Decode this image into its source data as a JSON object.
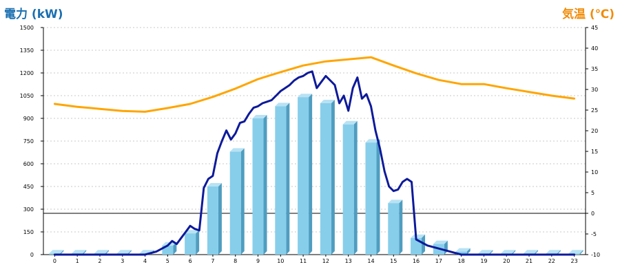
{
  "chart_data": {
    "type": "bar",
    "title": "",
    "left_axis": {
      "label": "電力 (kW)",
      "color": "#1a6fb0",
      "ylim": [
        0,
        1500
      ],
      "ticks": [
        0,
        150,
        300,
        450,
        600,
        750,
        900,
        1050,
        1200,
        1350,
        1500
      ]
    },
    "right_axis": {
      "label": "気温 (℃)",
      "color": "#f08c0a",
      "ylim": [
        -10,
        45
      ],
      "ticks": [
        -10,
        -5,
        0,
        5,
        10,
        15,
        20,
        25,
        30,
        35,
        40,
        45
      ]
    },
    "x_ticks": [
      0,
      1,
      2,
      3,
      4,
      5,
      6,
      7,
      8,
      9,
      10,
      11,
      12,
      13,
      14,
      15,
      16,
      17,
      18,
      19,
      20,
      21,
      22,
      23
    ],
    "grid": true,
    "colors": {
      "bar_front": "#87ceeb",
      "bar_side": "#4f9dc0",
      "bar_top": "#b8e2f4",
      "line_power": "#0d1a9a",
      "line_temp": "#ffa500",
      "grid": "#c8c8c8",
      "zero_line": "#000000"
    },
    "series": [
      {
        "type": "bar",
        "axis": "left",
        "x": [
          0,
          1,
          2,
          3,
          4,
          5,
          6,
          7,
          8,
          9,
          10,
          11,
          12,
          13,
          14,
          15,
          16,
          17,
          18,
          19,
          20,
          21,
          22,
          23
        ],
        "values": [
          8,
          8,
          8,
          8,
          8,
          60,
          140,
          450,
          680,
          900,
          980,
          1040,
          1000,
          860,
          740,
          340,
          110,
          70,
          20,
          8,
          8,
          8,
          8,
          8
        ]
      },
      {
        "type": "line",
        "axis": "left",
        "x": [
          0,
          4,
          4.5,
          5,
          5.2,
          5.4,
          5.6,
          5.8,
          6,
          6.2,
          6.4,
          6.6,
          6.8,
          7,
          7.2,
          7.4,
          7.6,
          7.8,
          8,
          8.2,
          8.4,
          8.6,
          8.8,
          9,
          9.2,
          9.4,
          9.6,
          9.8,
          10,
          10.2,
          10.4,
          10.6,
          10.8,
          11,
          11.2,
          11.4,
          11.6,
          11.8,
          12,
          12.2,
          12.4,
          12.6,
          12.8,
          13,
          13.2,
          13.4,
          13.6,
          13.8,
          14,
          14.2,
          14.4,
          14.6,
          14.8,
          15,
          15.2,
          15.4,
          15.6,
          15.8,
          16,
          16.5,
          17,
          17.5,
          18,
          23
        ],
        "values": [
          0,
          0,
          20,
          60,
          90,
          70,
          110,
          150,
          190,
          170,
          160,
          440,
          500,
          520,
          670,
          750,
          820,
          760,
          800,
          870,
          880,
          930,
          970,
          980,
          1000,
          1010,
          1020,
          1050,
          1080,
          1100,
          1120,
          1150,
          1170,
          1180,
          1200,
          1210,
          1100,
          1140,
          1180,
          1150,
          1120,
          1000,
          1050,
          950,
          1100,
          1170,
          1030,
          1060,
          980,
          820,
          700,
          550,
          450,
          420,
          430,
          480,
          500,
          480,
          100,
          60,
          40,
          20,
          0,
          0
        ]
      },
      {
        "type": "line",
        "axis": "right",
        "x": [
          0,
          1,
          2,
          3,
          4,
          5,
          6,
          7,
          8,
          9,
          10,
          11,
          12,
          13,
          14,
          15,
          16,
          17,
          18,
          19,
          20,
          21,
          22,
          23
        ],
        "values": [
          26.5,
          25.8,
          25.3,
          24.8,
          24.6,
          25.5,
          26.5,
          28.2,
          30.2,
          32.5,
          34.2,
          35.8,
          36.8,
          37.3,
          37.8,
          35.8,
          33.9,
          32.3,
          31.3,
          31.3,
          30.3,
          29.4,
          28.5,
          27.8
        ]
      }
    ]
  }
}
